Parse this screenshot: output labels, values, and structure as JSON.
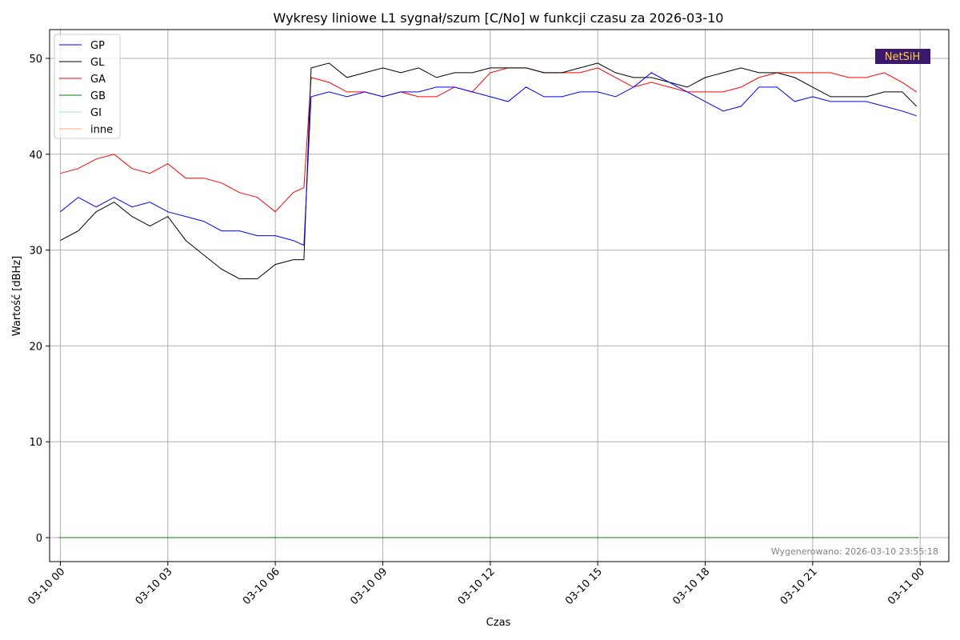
{
  "chart_data": {
    "type": "line",
    "title": "Wykresy liniowe L1 sygnał/szum [C/No] w funkcji czasu za 2026-03-10",
    "xlabel": "Czas",
    "ylabel": "Wartość [dBHz]",
    "xlim_hours": [
      -0.3,
      24.8
    ],
    "ylim": [
      -2.5,
      53
    ],
    "x_ticks": [
      "03-10 00",
      "03-10 03",
      "03-10 06",
      "03-10 09",
      "03-10 12",
      "03-10 15",
      "03-10 18",
      "03-10 21",
      "03-11 00"
    ],
    "x_tick_hours": [
      0,
      3,
      6,
      9,
      12,
      15,
      18,
      21,
      24
    ],
    "y_ticks": [
      0,
      10,
      20,
      30,
      40,
      50
    ],
    "grid": true,
    "legend_position": "top-left",
    "series": [
      {
        "name": "GP",
        "color": "#0000ff",
        "x": [
          0,
          0.5,
          1,
          1.5,
          2,
          2.5,
          3,
          3.5,
          4,
          4.5,
          5,
          5.5,
          6,
          6.5,
          6.8,
          7,
          7.5,
          8,
          8.5,
          9,
          9.5,
          10,
          10.5,
          11,
          11.5,
          12,
          12.5,
          13,
          13.5,
          14,
          14.5,
          15,
          15.5,
          16,
          16.5,
          17,
          17.5,
          18,
          18.5,
          19,
          19.5,
          20,
          20.5,
          21,
          21.5,
          22,
          22.5,
          23,
          23.5,
          23.9
        ],
        "y": [
          34,
          35.5,
          34.5,
          35.5,
          34.5,
          35,
          34,
          33.5,
          33,
          32,
          32,
          31.5,
          31.5,
          31,
          30.5,
          46,
          46.5,
          46,
          46.5,
          46,
          46.5,
          46.5,
          47,
          47,
          46.5,
          46,
          45.5,
          47,
          46,
          46,
          46.5,
          46.5,
          46,
          47,
          48.5,
          47.5,
          46.5,
          45.5,
          44.5,
          45,
          47,
          47,
          45.5,
          46,
          45.5,
          45.5,
          45.5,
          45,
          44.5,
          44
        ]
      },
      {
        "name": "GL",
        "color": "#000000",
        "x": [
          0,
          0.5,
          1,
          1.5,
          2,
          2.5,
          3,
          3.5,
          4,
          4.5,
          5,
          5.5,
          6,
          6.5,
          6.8,
          7,
          7.5,
          8,
          8.5,
          9,
          9.5,
          10,
          10.5,
          11,
          11.5,
          12,
          12.5,
          13,
          13.5,
          14,
          14.5,
          15,
          15.5,
          16,
          16.5,
          17,
          17.5,
          18,
          18.5,
          19,
          19.5,
          20,
          20.5,
          21,
          21.5,
          22,
          22.5,
          23,
          23.5,
          23.9
        ],
        "y": [
          31,
          32,
          34,
          35,
          33.5,
          32.5,
          33.5,
          31,
          29.5,
          28,
          27,
          27,
          28.5,
          29,
          29,
          49,
          49.5,
          48,
          48.5,
          49,
          48.5,
          49,
          48,
          48.5,
          48.5,
          49,
          49,
          49,
          48.5,
          48.5,
          49,
          49.5,
          48.5,
          48,
          48,
          47.5,
          47,
          48,
          48.5,
          49,
          48.5,
          48.5,
          48,
          47,
          46,
          46,
          46,
          46.5,
          46.5,
          45
        ]
      },
      {
        "name": "GA",
        "color": "#ff0000",
        "x": [
          0,
          0.5,
          1,
          1.5,
          2,
          2.5,
          3,
          3.5,
          4,
          4.5,
          5,
          5.5,
          6,
          6.5,
          6.8,
          7,
          7.5,
          8,
          8.5,
          9,
          9.5,
          10,
          10.5,
          11,
          11.5,
          12,
          12.5,
          13,
          13.5,
          14,
          14.5,
          15,
          15.5,
          16,
          16.5,
          17,
          17.5,
          18,
          18.5,
          19,
          19.5,
          20,
          20.5,
          21,
          21.5,
          22,
          22.5,
          23,
          23.5,
          23.9
        ],
        "y": [
          38,
          38.5,
          39.5,
          40,
          38.5,
          38,
          39,
          37.5,
          37.5,
          37,
          36,
          35.5,
          34,
          36,
          36.5,
          48,
          47.5,
          46.5,
          46.5,
          46,
          46.5,
          46,
          46,
          47,
          46.5,
          48.5,
          49,
          49,
          48.5,
          48.5,
          48.5,
          49,
          48,
          47,
          47.5,
          47,
          46.5,
          46.5,
          46.5,
          47,
          48,
          48.5,
          48.5,
          48.5,
          48.5,
          48,
          48,
          48.5,
          47.5,
          46.5
        ]
      },
      {
        "name": "GB",
        "color": "#008000",
        "x": [
          -0.05,
          23.95
        ],
        "y": [
          0,
          0
        ]
      },
      {
        "name": "GI",
        "color": "#add8e6",
        "x": [
          -0.05,
          23.95
        ],
        "y": [
          0,
          0
        ]
      },
      {
        "name": "inne",
        "color": "#ffa07a",
        "x": [
          -0.05,
          23.95
        ],
        "y": [
          0,
          0
        ]
      }
    ]
  },
  "footer": "Wygenerowano: 2026-03-10 23:55:18",
  "logo": {
    "text": "NetSiH",
    "background": "#3a1a6e",
    "color": "#ffcc33"
  }
}
